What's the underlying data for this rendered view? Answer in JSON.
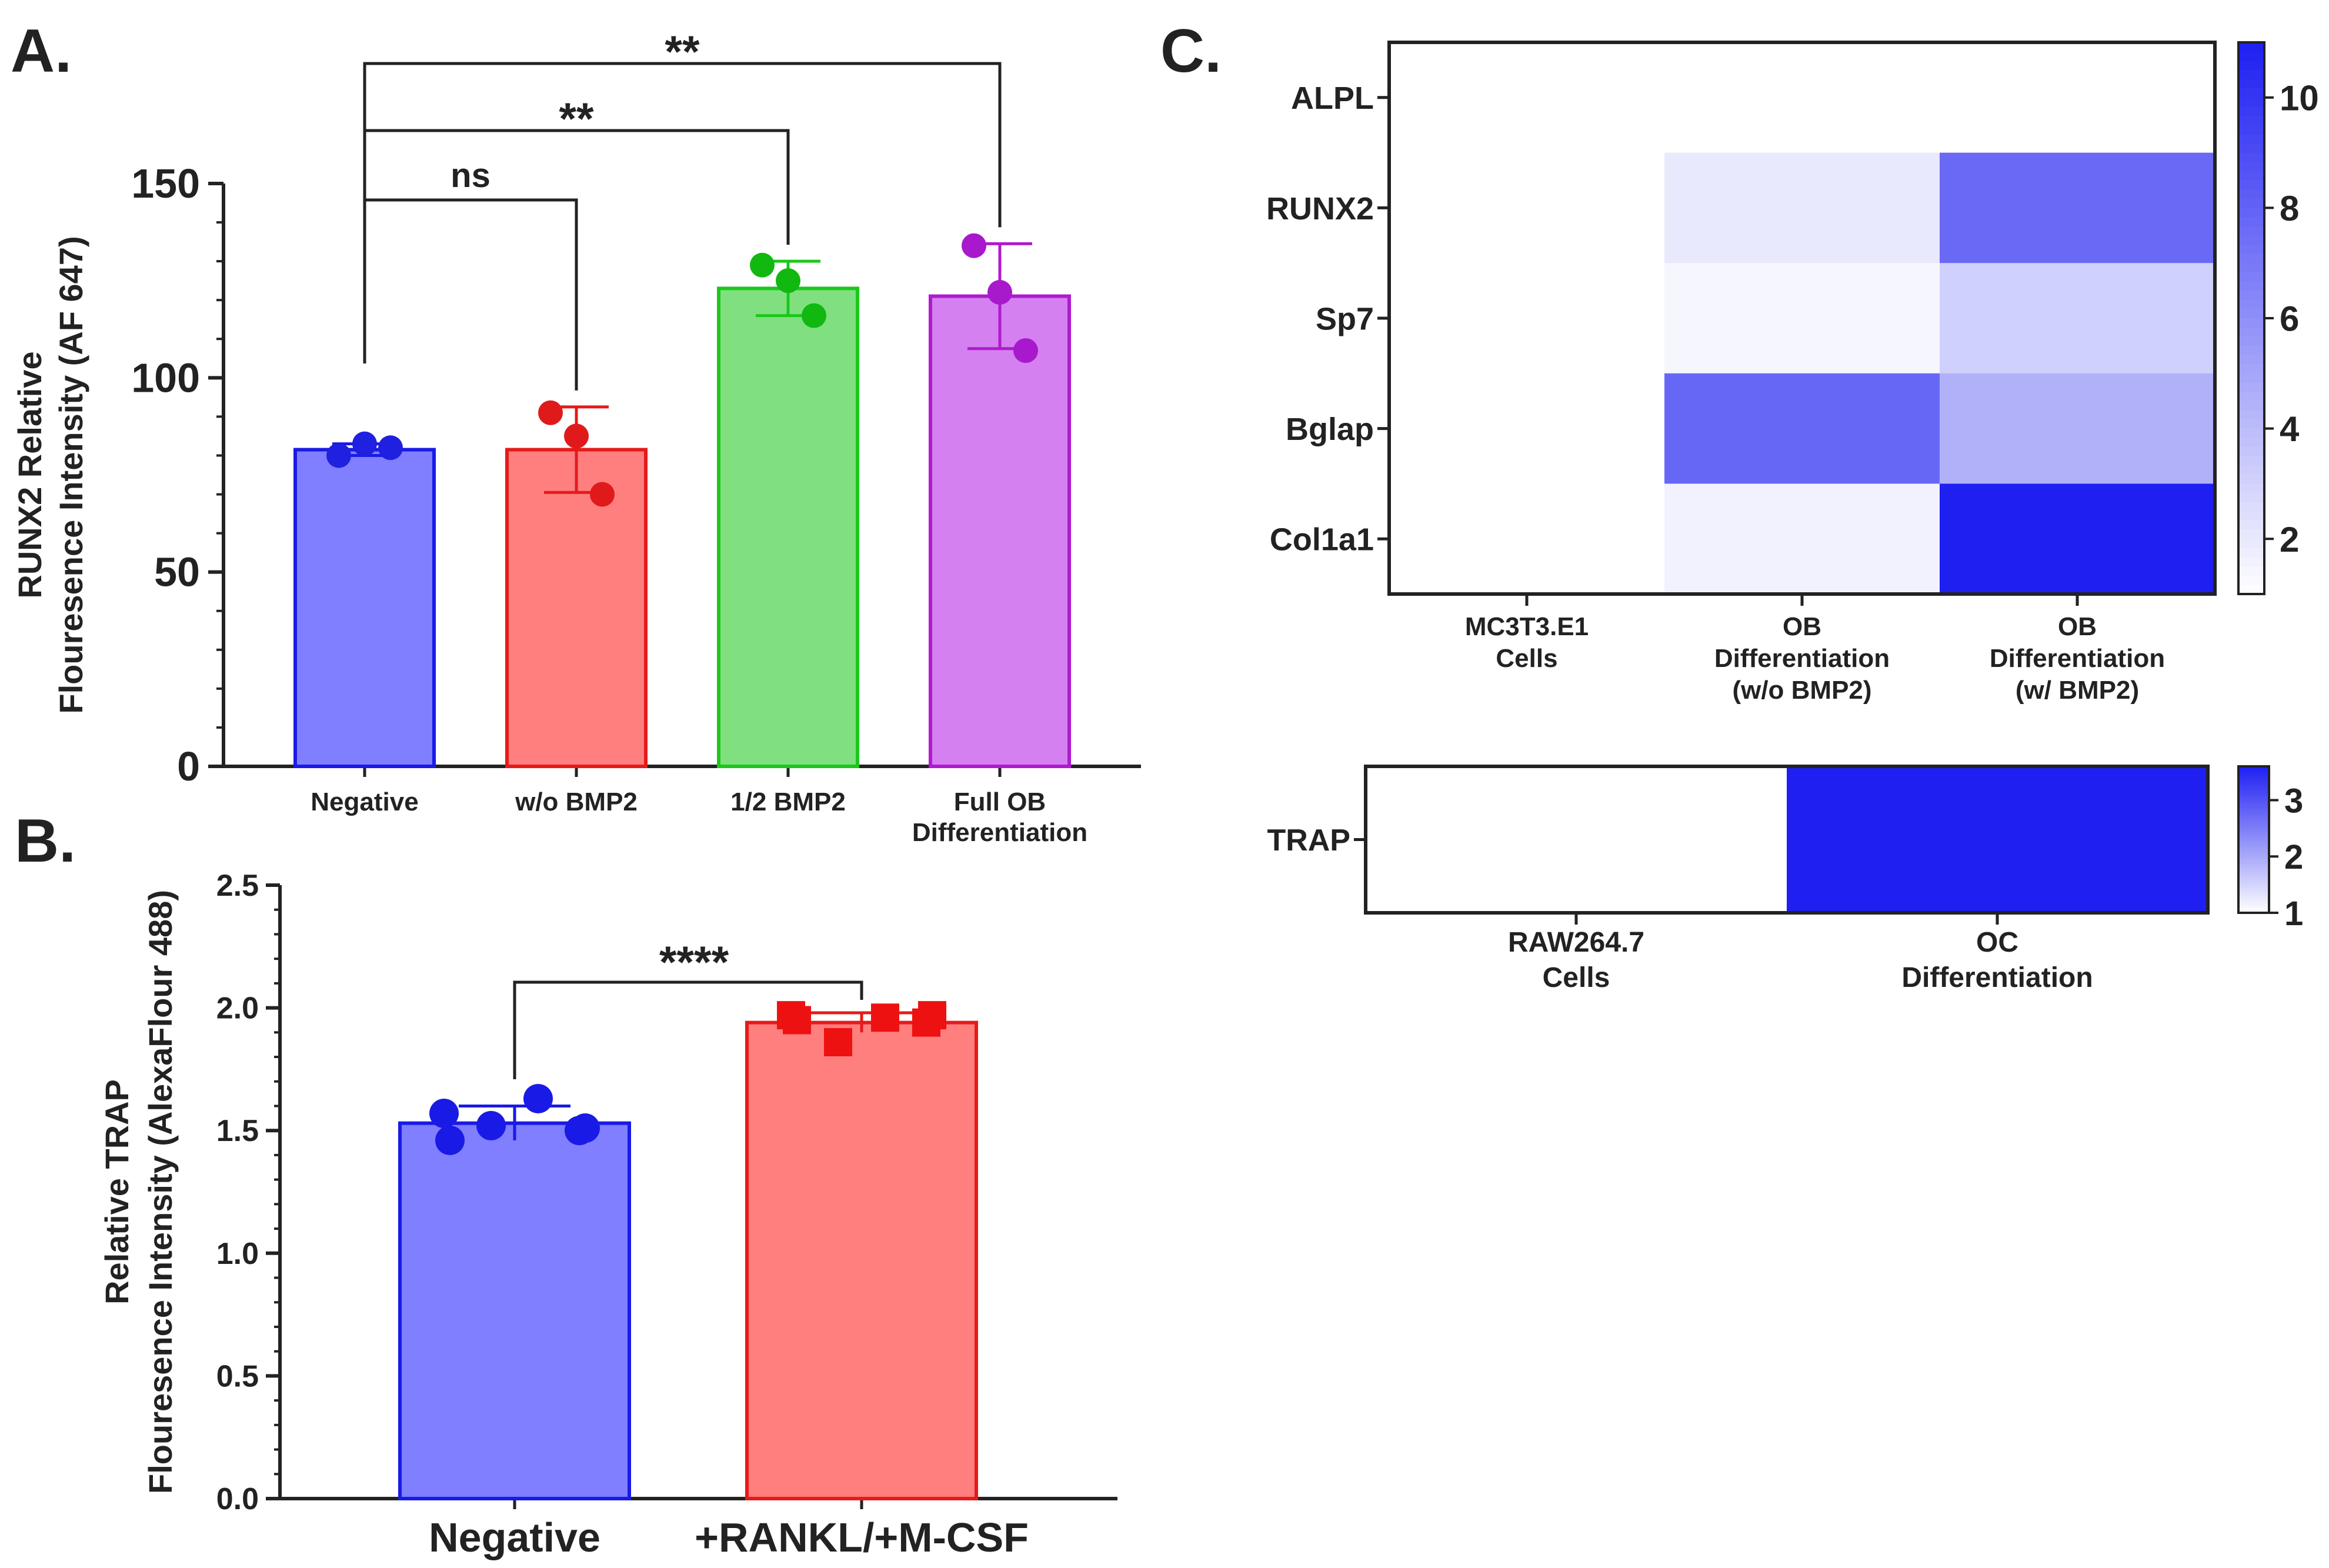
{
  "panels": {
    "A": {
      "letter": "A."
    },
    "B": {
      "letter": "B."
    },
    "C": {
      "letter": "C."
    }
  },
  "chart_data": [
    {
      "id": "A",
      "type": "bar",
      "ylabel_lines": [
        "RUNX2 Relative",
        "Flouresence Intensity (AF 647)"
      ],
      "ylim": [
        0,
        150
      ],
      "yticks": [
        0,
        50,
        100,
        150
      ],
      "categories": [
        {
          "label_lines": [
            "Negative"
          ]
        },
        {
          "label_lines": [
            "w/o BMP2"
          ]
        },
        {
          "label_lines": [
            "1/2 BMP2"
          ]
        },
        {
          "label_lines": [
            "Full OB",
            "Differentiation"
          ]
        }
      ],
      "values": [
        81.5,
        81.5,
        123,
        121
      ],
      "errors": [
        1.5,
        11,
        7,
        13.5
      ],
      "points": [
        [
          80,
          83,
          82
        ],
        [
          91,
          85,
          70
        ],
        [
          129,
          125,
          116
        ],
        [
          134,
          122,
          107
        ]
      ],
      "fill_colors": [
        "#7f7fff",
        "#ff7f7f",
        "#80e080",
        "#d580f0"
      ],
      "edge_colors": [
        "#1a1ae6",
        "#e61a1a",
        "#1ac81a",
        "#b01ad0"
      ],
      "point_colors": [
        "#2020e0",
        "#e01a1a",
        "#10b810",
        "#a818cc"
      ],
      "significance": [
        {
          "from": 0,
          "to": 1,
          "label": "ns"
        },
        {
          "from": 0,
          "to": 2,
          "label": "**"
        },
        {
          "from": 0,
          "to": 3,
          "label": "**"
        }
      ]
    },
    {
      "id": "B",
      "type": "bar",
      "ylabel_lines": [
        "Relative TRAP",
        "Flouresence Intensity (AlexaFlour 488)"
      ],
      "ylim": [
        0,
        2.5
      ],
      "yticks": [
        "0.0",
        "0.5",
        "1.0",
        "1.5",
        "2.0",
        "2.5"
      ],
      "categories": [
        "Negative",
        "+RANKL/+M-CSF"
      ],
      "values": [
        1.53,
        1.94
      ],
      "errors": [
        0.07,
        0.04
      ],
      "points": [
        [
          1.57,
          1.46,
          1.52,
          1.63,
          1.5,
          1.51
        ],
        [
          1.97,
          1.95,
          1.86,
          1.96,
          1.94,
          1.97
        ]
      ],
      "fill_colors": [
        "#7f7fff",
        "#ff7f7f"
      ],
      "edge_colors": [
        "#1a1ae6",
        "#e61a1a"
      ],
      "point_colors": [
        "#1a1ae6",
        "#ee1111"
      ],
      "significance": [
        {
          "from": 0,
          "to": 1,
          "label": "****"
        }
      ]
    },
    {
      "id": "C1",
      "type": "heatmap",
      "rows": [
        "ALPL",
        "RUNX2",
        "Sp7",
        "Bglap",
        "Col1a1"
      ],
      "columns": [
        {
          "label_lines": [
            "MC3T3.E1",
            "Cells"
          ]
        },
        {
          "label_lines": [
            "OB",
            "Differentiation",
            "(w/o BMP2)"
          ]
        },
        {
          "label_lines": [
            "OB",
            "Differentiation",
            "(w/ BMP2)"
          ]
        }
      ],
      "values": [
        [
          1,
          1,
          1
        ],
        [
          1,
          2.0,
          7.7
        ],
        [
          1,
          1.4,
          3.1
        ],
        [
          1,
          7.8,
          4.5
        ],
        [
          1,
          1.6,
          11
        ]
      ],
      "vmin": 1,
      "vmax": 11,
      "colorbar_ticks": [
        2,
        4,
        6,
        8,
        10
      ],
      "color_low": "#ffffff",
      "color_high": "#1f1ff2"
    },
    {
      "id": "C2",
      "type": "heatmap",
      "rows": [
        "TRAP"
      ],
      "columns": [
        {
          "label_lines": [
            "RAW264.7",
            "Cells"
          ]
        },
        {
          "label_lines": [
            "OC",
            "Differentiation"
          ]
        }
      ],
      "values": [
        [
          1,
          3.6
        ]
      ],
      "vmin": 1,
      "vmax": 3.6,
      "colorbar_ticks": [
        1,
        2,
        3
      ],
      "color_low": "#ffffff",
      "color_high": "#1f1ff2"
    }
  ]
}
